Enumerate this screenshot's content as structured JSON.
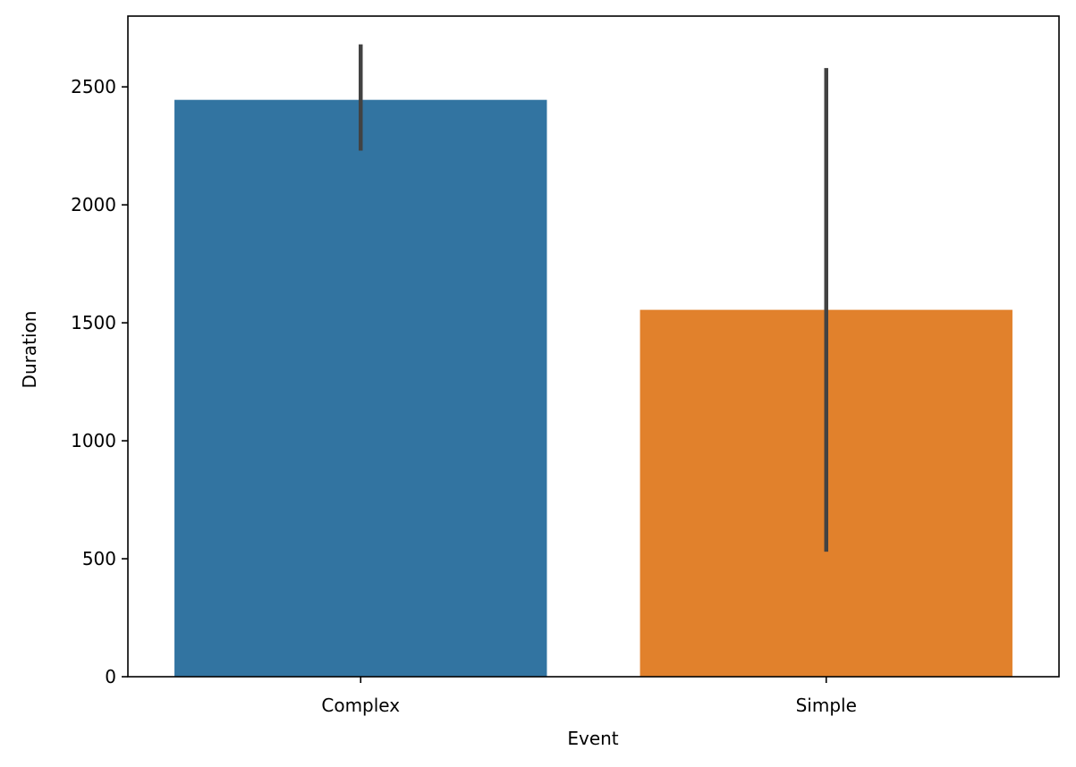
{
  "chart_data": {
    "type": "bar",
    "categories": [
      "Complex",
      "Simple"
    ],
    "values": [
      2445,
      1555
    ],
    "error_bars": [
      {
        "low": 2230,
        "high": 2680
      },
      {
        "low": 530,
        "high": 2580
      }
    ],
    "title": "",
    "xlabel": "Event",
    "ylabel": "Duration",
    "ylim": [
      0,
      2800
    ],
    "yticks": [
      0,
      500,
      1000,
      1500,
      2000,
      2500
    ],
    "ytick_labels": [
      "0",
      "500",
      "1000",
      "1500",
      "2000",
      "2500"
    ],
    "colors": [
      "#3274a1",
      "#e1812c"
    ],
    "error_bar_color": "#424242",
    "grid": false,
    "legend": "none"
  }
}
